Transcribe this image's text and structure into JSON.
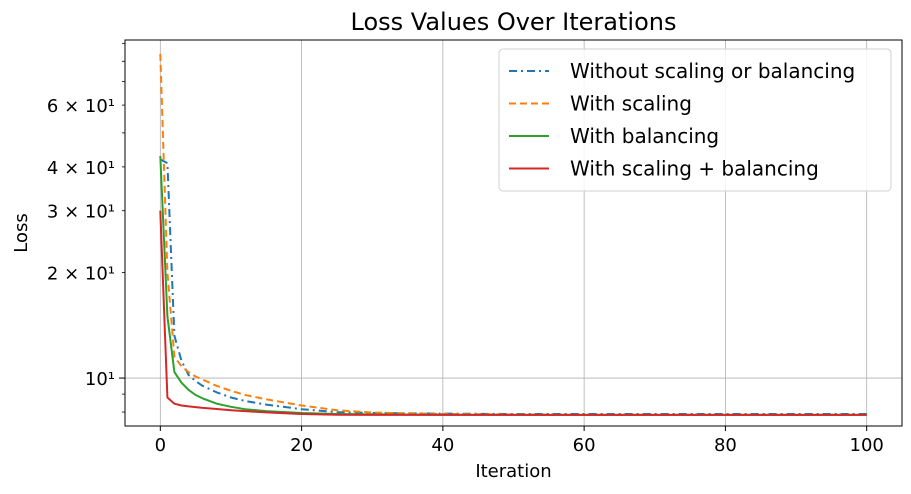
{
  "chart_data": {
    "type": "line",
    "title": "Loss Values Over Iterations",
    "xlabel": "Iteration",
    "ylabel": "Loss",
    "xlim": [
      -5,
      105
    ],
    "ylim": [
      7.3,
      92
    ],
    "yscale": "log",
    "grid": true,
    "legend_position": "top-right",
    "x_ticks": [
      0,
      20,
      40,
      60,
      80,
      100
    ],
    "x_tick_labels": [
      "0",
      "20",
      "40",
      "60",
      "80",
      "100"
    ],
    "y_major_ticks": [
      10
    ],
    "y_major_tick_labels": [
      "10¹"
    ],
    "y_minor_ticks": [
      8,
      9,
      20,
      30,
      40,
      50,
      60,
      70,
      80,
      90
    ],
    "y_minor_labeled_ticks": [
      20,
      30,
      40,
      60
    ],
    "y_minor_tick_labels": [
      "2 × 10¹",
      "3 × 10¹",
      "4 × 10¹",
      "6 × 10¹"
    ],
    "series": [
      {
        "name": "Without scaling or balancing",
        "color": "#1f77b4",
        "style": "dashdot",
        "x": [
          0,
          1,
          2,
          3,
          4,
          5,
          6,
          8,
          10,
          12,
          15,
          20,
          25,
          30,
          40,
          50,
          60,
          80,
          100
        ],
        "y": [
          42,
          41,
          13.2,
          11.2,
          10.2,
          9.8,
          9.5,
          9.1,
          8.8,
          8.6,
          8.4,
          8.15,
          8.0,
          7.95,
          7.92,
          7.9,
          7.9,
          7.9,
          7.9
        ]
      },
      {
        "name": "With scaling",
        "color": "#ff7f0e",
        "style": "dashed",
        "x": [
          0,
          1,
          2,
          3,
          4,
          5,
          6,
          8,
          10,
          12,
          15,
          20,
          25,
          30,
          40,
          50,
          60,
          80,
          100
        ],
        "y": [
          84,
          20,
          11.5,
          10.8,
          10.4,
          10.1,
          9.9,
          9.5,
          9.2,
          8.95,
          8.7,
          8.35,
          8.1,
          7.97,
          7.9,
          7.87,
          7.85,
          7.85,
          7.85
        ]
      },
      {
        "name": "With balancing",
        "color": "#2ca02c",
        "style": "solid",
        "x": [
          0,
          1,
          2,
          3,
          4,
          5,
          6,
          8,
          10,
          12,
          15,
          20,
          25,
          30,
          40,
          50,
          60,
          80,
          100
        ],
        "y": [
          43,
          15,
          10.4,
          9.7,
          9.25,
          8.95,
          8.75,
          8.45,
          8.28,
          8.15,
          8.05,
          7.95,
          7.9,
          7.88,
          7.86,
          7.85,
          7.85,
          7.85,
          7.85
        ]
      },
      {
        "name": "With scaling + balancing",
        "color": "#d62728",
        "style": "solid",
        "x": [
          0,
          1,
          2,
          3,
          4,
          6,
          8,
          10,
          12,
          15,
          20,
          25,
          30,
          40,
          50,
          60,
          80,
          100
        ],
        "y": [
          30,
          8.8,
          8.45,
          8.35,
          8.3,
          8.22,
          8.16,
          8.1,
          8.05,
          7.98,
          7.9,
          7.86,
          7.85,
          7.85,
          7.85,
          7.85,
          7.85,
          7.85
        ]
      }
    ]
  }
}
